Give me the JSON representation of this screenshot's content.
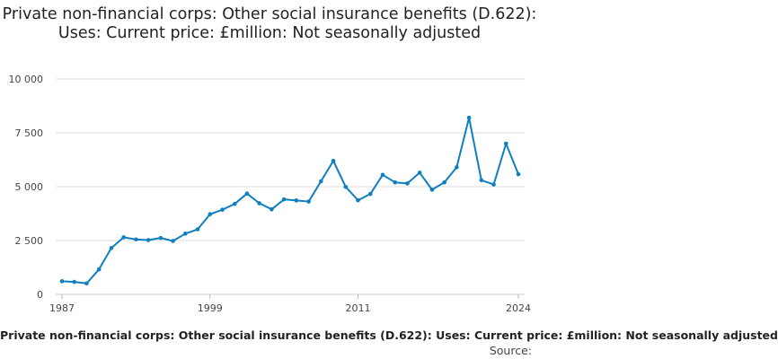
{
  "chart_data": {
    "type": "line",
    "title": "Private non-financial corps: Other social insurance benefits (D.622): Uses: Current price: £million: Not seasonally adjusted",
    "xlabel": "",
    "ylabel": "",
    "x": [
      1987,
      1988,
      1989,
      1990,
      1991,
      1992,
      1993,
      1994,
      1995,
      1996,
      1997,
      1998,
      1999,
      2000,
      2001,
      2002,
      2003,
      2004,
      2005,
      2006,
      2007,
      2008,
      2009,
      2010,
      2011,
      2012,
      2013,
      2014,
      2015,
      2016,
      2017,
      2018,
      2019,
      2020,
      2021,
      2022,
      2023,
      2024
    ],
    "series": [
      {
        "name": "Private non-financial corps: Other social insurance benefits (D.622): Uses: Current price: £million: Not seasonally adjusted",
        "color": "#0f7fc0",
        "values": [
          610,
          580,
          510,
          1160,
          2150,
          2650,
          2550,
          2520,
          2620,
          2480,
          2820,
          3020,
          3720,
          3930,
          4200,
          4680,
          4230,
          3950,
          4410,
          4360,
          4310,
          5250,
          6200,
          4990,
          4370,
          4660,
          5550,
          5200,
          5150,
          5650,
          4860,
          5200,
          5900,
          8200,
          5300,
          5100,
          7000,
          5580
        ]
      }
    ],
    "ylim": [
      0,
      10000
    ],
    "yticks": [
      0,
      2500,
      5000,
      7500,
      10000
    ],
    "ytick_labels": [
      "0",
      "2 500",
      "5 000",
      "7 500",
      "10 000"
    ],
    "xticks": [
      1987,
      1999,
      2011,
      2024
    ],
    "xtick_labels": [
      "1987",
      "1999",
      "2011",
      "2024"
    ],
    "grid": true,
    "legend": "none"
  },
  "footer": {
    "text": "Private non-financial corps: Other social insurance benefits (D.622): Uses: Current price: £million: Not seasonally adjusted",
    "source_label": "Source:"
  }
}
